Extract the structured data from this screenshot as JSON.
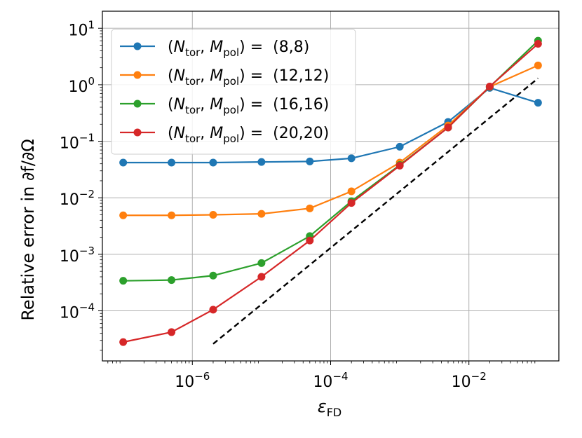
{
  "chart_data": {
    "type": "line",
    "xscale": "log",
    "yscale": "log",
    "xlim": [
      5e-08,
      0.2
    ],
    "ylim": [
      1.3e-05,
      20
    ],
    "xlabel": "ε",
    "xlabel_sub": "FD",
    "ylabel": "Relative error in ∂f/∂Ω",
    "grid": true,
    "legend_position": "upper left",
    "xticks": [
      {
        "value": 1e-06,
        "base": "10",
        "exp": "−6"
      },
      {
        "value": 0.0001,
        "base": "10",
        "exp": "−4"
      },
      {
        "value": 0.01,
        "base": "10",
        "exp": "−2"
      }
    ],
    "yticks": [
      {
        "value": 0.0001,
        "base": "10",
        "exp": "−4"
      },
      {
        "value": 0.001,
        "base": "10",
        "exp": "−3"
      },
      {
        "value": 0.01,
        "base": "10",
        "exp": "−2"
      },
      {
        "value": 0.1,
        "base": "10",
        "exp": "−1"
      },
      {
        "value": 1,
        "base": "10",
        "exp": "0"
      },
      {
        "value": 10,
        "base": "10",
        "exp": "1"
      }
    ],
    "x": [
      1e-07,
      5e-07,
      2e-06,
      1e-05,
      5e-05,
      0.0002,
      0.001,
      0.005,
      0.02,
      0.1
    ],
    "series": [
      {
        "name": "(8,8)",
        "color": "#1f77b4",
        "values": [
          0.042,
          0.042,
          0.042,
          0.043,
          0.044,
          0.05,
          0.08,
          0.22,
          0.88,
          0.48
        ]
      },
      {
        "name": "(12,12)",
        "color": "#ff7f0e",
        "values": [
          0.0049,
          0.0049,
          0.005,
          0.0052,
          0.0065,
          0.013,
          0.042,
          0.19,
          0.92,
          2.2
        ]
      },
      {
        "name": "(16,16)",
        "color": "#2ca02c",
        "values": [
          0.00034,
          0.00035,
          0.00042,
          0.0007,
          0.0021,
          0.0087,
          0.038,
          0.175,
          0.92,
          6.0
        ]
      },
      {
        "name": "(20,20)",
        "color": "#d62728",
        "values": [
          2.8e-05,
          4.2e-05,
          0.000105,
          0.0004,
          0.00175,
          0.0081,
          0.037,
          0.175,
          0.93,
          5.3
        ]
      }
    ],
    "reference_line": {
      "style": "dashed",
      "color": "#000000",
      "x": [
        2e-06,
        0.1
      ],
      "y": [
        2.6e-05,
        1.3
      ]
    },
    "legend_prefix": {
      "open": "(",
      "n": "N",
      "n_sub": "tor",
      "sep": ", ",
      "m": "M",
      "m_sub": "pol",
      "close": ") ="
    }
  }
}
